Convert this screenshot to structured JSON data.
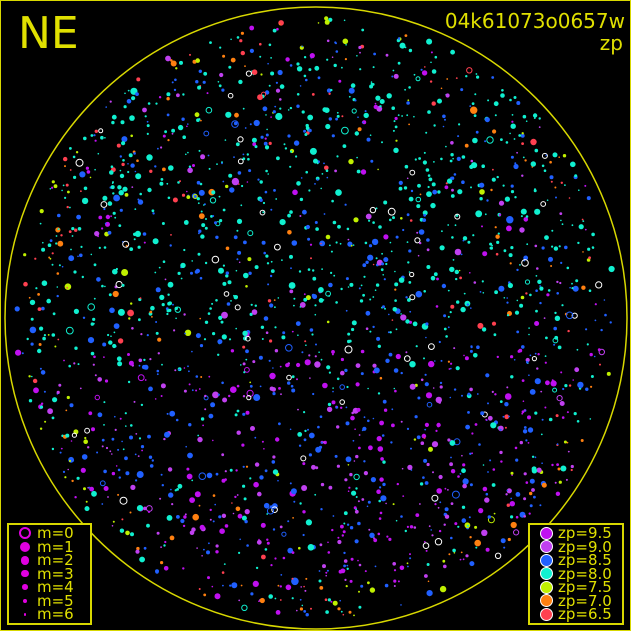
{
  "header": {
    "direction": "NE",
    "frame_id": "04k61073o0657w",
    "band": "zp"
  },
  "chart_data": {
    "type": "scatter",
    "title": "04k61073o0657w",
    "subtitle": "zp",
    "grid": false,
    "legend_placement": [
      "bottom-left",
      "bottom-right"
    ],
    "magnitude_legend": [
      {
        "label": "m=0",
        "style": "open"
      },
      {
        "label": "m=1",
        "size": 5
      },
      {
        "label": "m=2",
        "size": 4.3
      },
      {
        "label": "m=3",
        "size": 3.6
      },
      {
        "label": "m=4",
        "size": 2.8
      },
      {
        "label": "m=5",
        "size": 2.2
      },
      {
        "label": "m=6",
        "size": 1.4
      }
    ],
    "zp_legend": [
      {
        "label": "zp=9.5",
        "zp": 9.5,
        "color": "#c010f0"
      },
      {
        "label": "zp=9.0",
        "zp": 9.0,
        "color": "#c040f0"
      },
      {
        "label": "zp=8.5",
        "zp": 8.5,
        "color": "#2060ff"
      },
      {
        "label": "zp=8.0",
        "zp": 8.0,
        "color": "#10f0d0"
      },
      {
        "label": "zp=7.5",
        "zp": 7.5,
        "color": "#c0f000"
      },
      {
        "label": "zp=7.0",
        "zp": 7.0,
        "color": "#ff8010"
      },
      {
        "label": "zp=6.5",
        "zp": 6.5,
        "color": "#ff4050"
      }
    ],
    "horizon_color": "#d8d800"
  }
}
